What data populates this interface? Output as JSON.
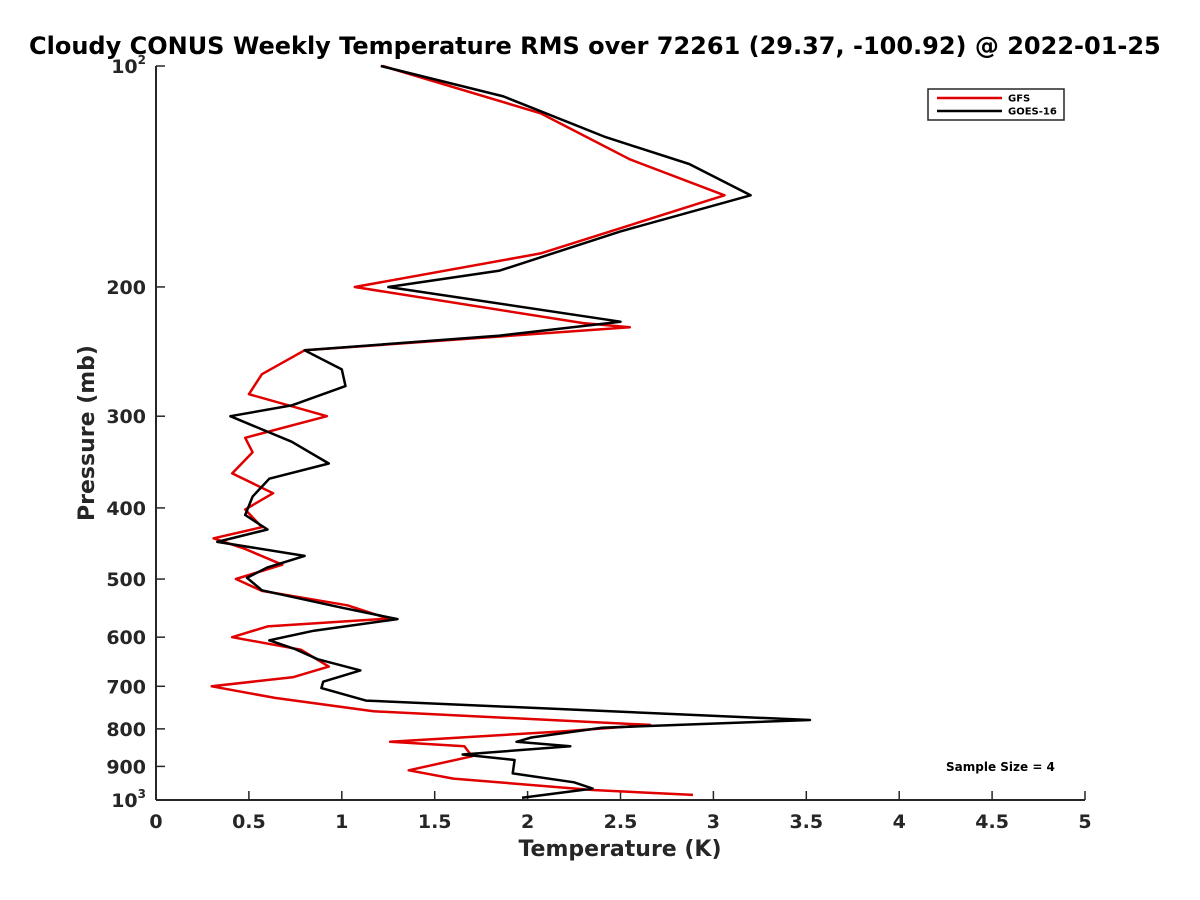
{
  "chart_data": {
    "type": "line",
    "title": "Cloudy CONUS Weekly Temperature RMS over 72261 (29.37, -100.92) @ 2022-01-25",
    "xlabel": "Temperature (K)",
    "ylabel": "Pressure (mb)",
    "xlim": [
      0,
      5
    ],
    "ylim": [
      100,
      1000
    ],
    "y_scale": "log",
    "y_reversed": true,
    "grid": false,
    "legend_position": "top-right",
    "x_ticks": [
      0,
      0.5,
      1,
      1.5,
      2,
      2.5,
      3,
      3.5,
      4,
      4.5,
      5
    ],
    "x_tick_labels": [
      "0",
      "0.5",
      "1",
      "1.5",
      "2",
      "2.5",
      "3",
      "3.5",
      "4",
      "4.5",
      "5"
    ],
    "y_ticks": [
      {
        "value": 100,
        "base": "10",
        "exp": "2"
      },
      {
        "value": 200,
        "label": "200"
      },
      {
        "value": 300,
        "label": "300"
      },
      {
        "value": 400,
        "label": "400"
      },
      {
        "value": 500,
        "label": "500"
      },
      {
        "value": 600,
        "label": "600"
      },
      {
        "value": 700,
        "label": "700"
      },
      {
        "value": 800,
        "label": "800"
      },
      {
        "value": 900,
        "label": "900"
      },
      {
        "value": 1000,
        "base": "10",
        "exp": "3"
      }
    ],
    "annotation": "Sample Size = 4",
    "series": [
      {
        "name": "GFS",
        "color": "#e00000",
        "points": [
          [
            1.22,
            100
          ],
          [
            2.07,
            116
          ],
          [
            2.55,
            134
          ],
          [
            3.06,
            150
          ],
          [
            2.07,
            180
          ],
          [
            1.07,
            200
          ],
          [
            2.3,
            224
          ],
          [
            2.55,
            227
          ],
          [
            0.8,
            244
          ],
          [
            0.57,
            263
          ],
          [
            0.5,
            280
          ],
          [
            0.92,
            300
          ],
          [
            0.48,
            321
          ],
          [
            0.52,
            336
          ],
          [
            0.41,
            359
          ],
          [
            0.63,
            382
          ],
          [
            0.48,
            402
          ],
          [
            0.57,
            425
          ],
          [
            0.31,
            440
          ],
          [
            0.48,
            455
          ],
          [
            0.68,
            478
          ],
          [
            0.43,
            500
          ],
          [
            0.57,
            519
          ],
          [
            1.03,
            543
          ],
          [
            1.25,
            566
          ],
          [
            0.6,
            580
          ],
          [
            0.41,
            600
          ],
          [
            0.78,
            624
          ],
          [
            0.93,
            658
          ],
          [
            0.74,
            680
          ],
          [
            0.3,
            700
          ],
          [
            0.64,
            726
          ],
          [
            1.17,
            757
          ],
          [
            2.66,
            790
          ],
          [
            2.2,
            806
          ],
          [
            1.26,
            833
          ],
          [
            1.66,
            845
          ],
          [
            1.7,
            872
          ],
          [
            1.36,
            911
          ],
          [
            1.6,
            935
          ],
          [
            2.35,
            969
          ],
          [
            2.89,
            984
          ]
        ]
      },
      {
        "name": "GOES-16",
        "color": "#000000",
        "points": [
          [
            1.21,
            100
          ],
          [
            1.87,
            110
          ],
          [
            2.42,
            125
          ],
          [
            2.87,
            136
          ],
          [
            3.2,
            150
          ],
          [
            2.5,
            168
          ],
          [
            1.85,
            190
          ],
          [
            1.25,
            200
          ],
          [
            2.5,
            223
          ],
          [
            1.85,
            233
          ],
          [
            0.8,
            244
          ],
          [
            1.0,
            259
          ],
          [
            1.02,
            273
          ],
          [
            0.73,
            290
          ],
          [
            0.4,
            300
          ],
          [
            0.73,
            325
          ],
          [
            0.93,
            348
          ],
          [
            0.61,
            365
          ],
          [
            0.52,
            386
          ],
          [
            0.48,
            409
          ],
          [
            0.6,
            428
          ],
          [
            0.33,
            445
          ],
          [
            0.8,
            465
          ],
          [
            0.6,
            482
          ],
          [
            0.49,
            498
          ],
          [
            0.57,
            518
          ],
          [
            1.0,
            547
          ],
          [
            1.3,
            567
          ],
          [
            0.85,
            588
          ],
          [
            0.61,
            606
          ],
          [
            0.75,
            623
          ],
          [
            0.87,
            643
          ],
          [
            1.1,
            666
          ],
          [
            0.9,
            690
          ],
          [
            0.89,
            704
          ],
          [
            1.13,
            732
          ],
          [
            3.52,
            778
          ],
          [
            2.4,
            797
          ],
          [
            2.02,
            822
          ],
          [
            1.94,
            833
          ],
          [
            2.23,
            845
          ],
          [
            1.65,
            867
          ],
          [
            1.93,
            882
          ],
          [
            1.92,
            920
          ],
          [
            2.25,
            946
          ],
          [
            2.35,
            965
          ],
          [
            1.97,
            993
          ]
        ]
      }
    ]
  }
}
